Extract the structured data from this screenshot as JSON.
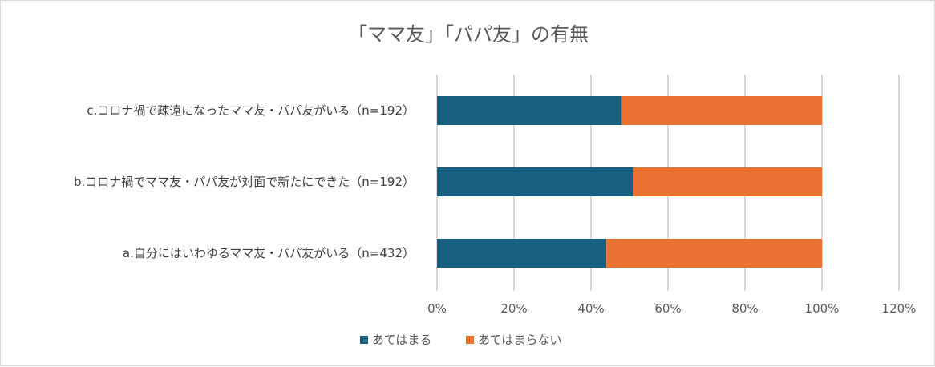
{
  "chart_data": {
    "type": "bar",
    "orientation": "horizontal",
    "stacked": "percent",
    "title": "「ママ友」「パパ友」の有無",
    "categories": [
      "c.コロナ禍で疎遠になったママ友・パパ友がいる（n=192）",
      "b.コロナ禍でママ友・パパ友が対面で新たにできた（n=192）",
      "a.自分にはいわゆるママ友・パパ友がいる（n=432）"
    ],
    "series": [
      {
        "name": "あてはまる",
        "color": "#17607f",
        "values": [
          48,
          51,
          44
        ]
      },
      {
        "name": "あてはまらない",
        "color": "#e97132",
        "values": [
          52,
          49,
          56
        ]
      }
    ],
    "xlim": [
      0,
      120
    ],
    "xticks": [
      "0%",
      "20%",
      "40%",
      "60%",
      "80%",
      "100%",
      "120%"
    ],
    "grid": true,
    "legend": "bottom"
  }
}
